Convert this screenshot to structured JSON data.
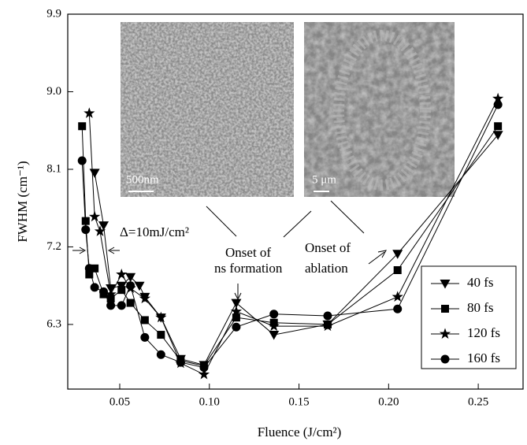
{
  "chart_data": {
    "type": "line",
    "x_label": "Fluence (J/cm²)",
    "y_label": "FWHM (cm⁻¹)",
    "xlim": [
      0.021,
      0.275
    ],
    "ylim": [
      5.55,
      9.9
    ],
    "xticks": [
      0.05,
      {
        "value": 0.1,
        "label": "0.10"
      },
      0.15,
      {
        "value": 0.2,
        "label": "0.20"
      },
      0.25
    ],
    "yticks": [
      {
        "value": 6.3,
        "label": "6.3"
      },
      {
        "value": 7.2,
        "label": "7.2"
      },
      {
        "value": 8.1,
        "label": "8.1"
      },
      {
        "value": 9,
        "label": "9.0"
      },
      {
        "value": 9.9,
        "label": "9.9"
      }
    ],
    "color": "#000000",
    "legend": "lower right",
    "annotations": {
      "delta": "Δ=10mJ/cm²",
      "ns_1": "Onset of",
      "ns_2": "ns formation",
      "abl_1": "Onset of",
      "abl_2": "ablation",
      "scale_1": "500nm",
      "scale_2": "5 μm"
    },
    "series": [
      {
        "name": "40 fs",
        "marker": "triangle-down",
        "x": [
          0.036,
          0.041,
          0.045,
          0.051,
          0.056,
          0.061,
          0.064,
          0.073,
          0.084,
          0.097,
          0.115,
          0.136,
          0.166,
          0.205,
          0.261
        ],
        "values": [
          8.06,
          7.45,
          6.72,
          6.75,
          6.85,
          6.75,
          6.62,
          6.38,
          5.9,
          5.83,
          6.55,
          6.18,
          6.3,
          7.12,
          8.5
        ]
      },
      {
        "name": "80 fs",
        "marker": "square",
        "x": [
          0.029,
          0.031,
          0.033,
          0.036,
          0.041,
          0.045,
          0.051,
          0.056,
          0.064,
          0.073,
          0.084,
          0.097,
          0.115,
          0.136,
          0.166,
          0.205,
          0.261
        ],
        "values": [
          8.6,
          7.5,
          6.88,
          6.95,
          6.65,
          6.6,
          6.7,
          6.55,
          6.35,
          6.18,
          5.88,
          5.82,
          6.38,
          6.32,
          6.3,
          6.93,
          8.6
        ]
      },
      {
        "name": "120 fs",
        "marker": "star",
        "x": [
          0.033,
          0.036,
          0.039,
          0.045,
          0.051,
          0.056,
          0.064,
          0.073,
          0.084,
          0.097,
          0.115,
          0.136,
          0.166,
          0.205,
          0.261
        ],
        "values": [
          8.75,
          7.55,
          7.38,
          6.65,
          6.88,
          6.72,
          6.6,
          6.38,
          5.85,
          5.72,
          6.45,
          6.28,
          6.28,
          6.62,
          8.92
        ]
      },
      {
        "name": "160 fs",
        "marker": "circle",
        "x": [
          0.029,
          0.031,
          0.033,
          0.036,
          0.041,
          0.045,
          0.051,
          0.056,
          0.064,
          0.073,
          0.084,
          0.097,
          0.115,
          0.136,
          0.166,
          0.205,
          0.261
        ],
        "values": [
          8.2,
          7.4,
          6.95,
          6.73,
          6.68,
          6.52,
          6.52,
          6.75,
          6.15,
          5.95,
          5.86,
          5.8,
          6.27,
          6.42,
          6.4,
          6.48,
          8.85
        ]
      }
    ]
  }
}
